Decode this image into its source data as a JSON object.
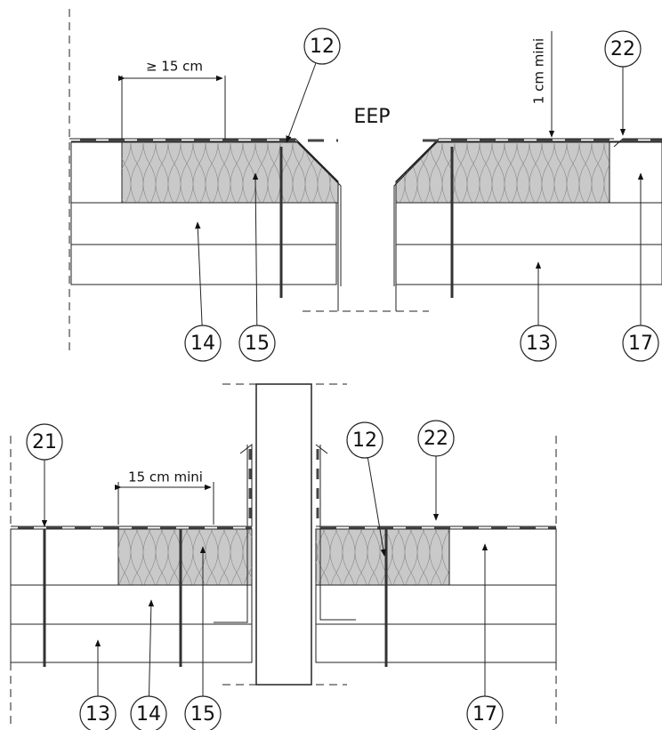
{
  "top_detail": {
    "dimension": "≥ 15 cm",
    "opening": "EEP",
    "clearance": "1 cm mini",
    "callouts": [
      "12",
      "22",
      "14",
      "15",
      "13",
      "17"
    ]
  },
  "bottom_detail": {
    "dimension": "15 cm mini",
    "callouts": [
      "21",
      "12",
      "22",
      "13",
      "14",
      "15",
      "17"
    ]
  }
}
